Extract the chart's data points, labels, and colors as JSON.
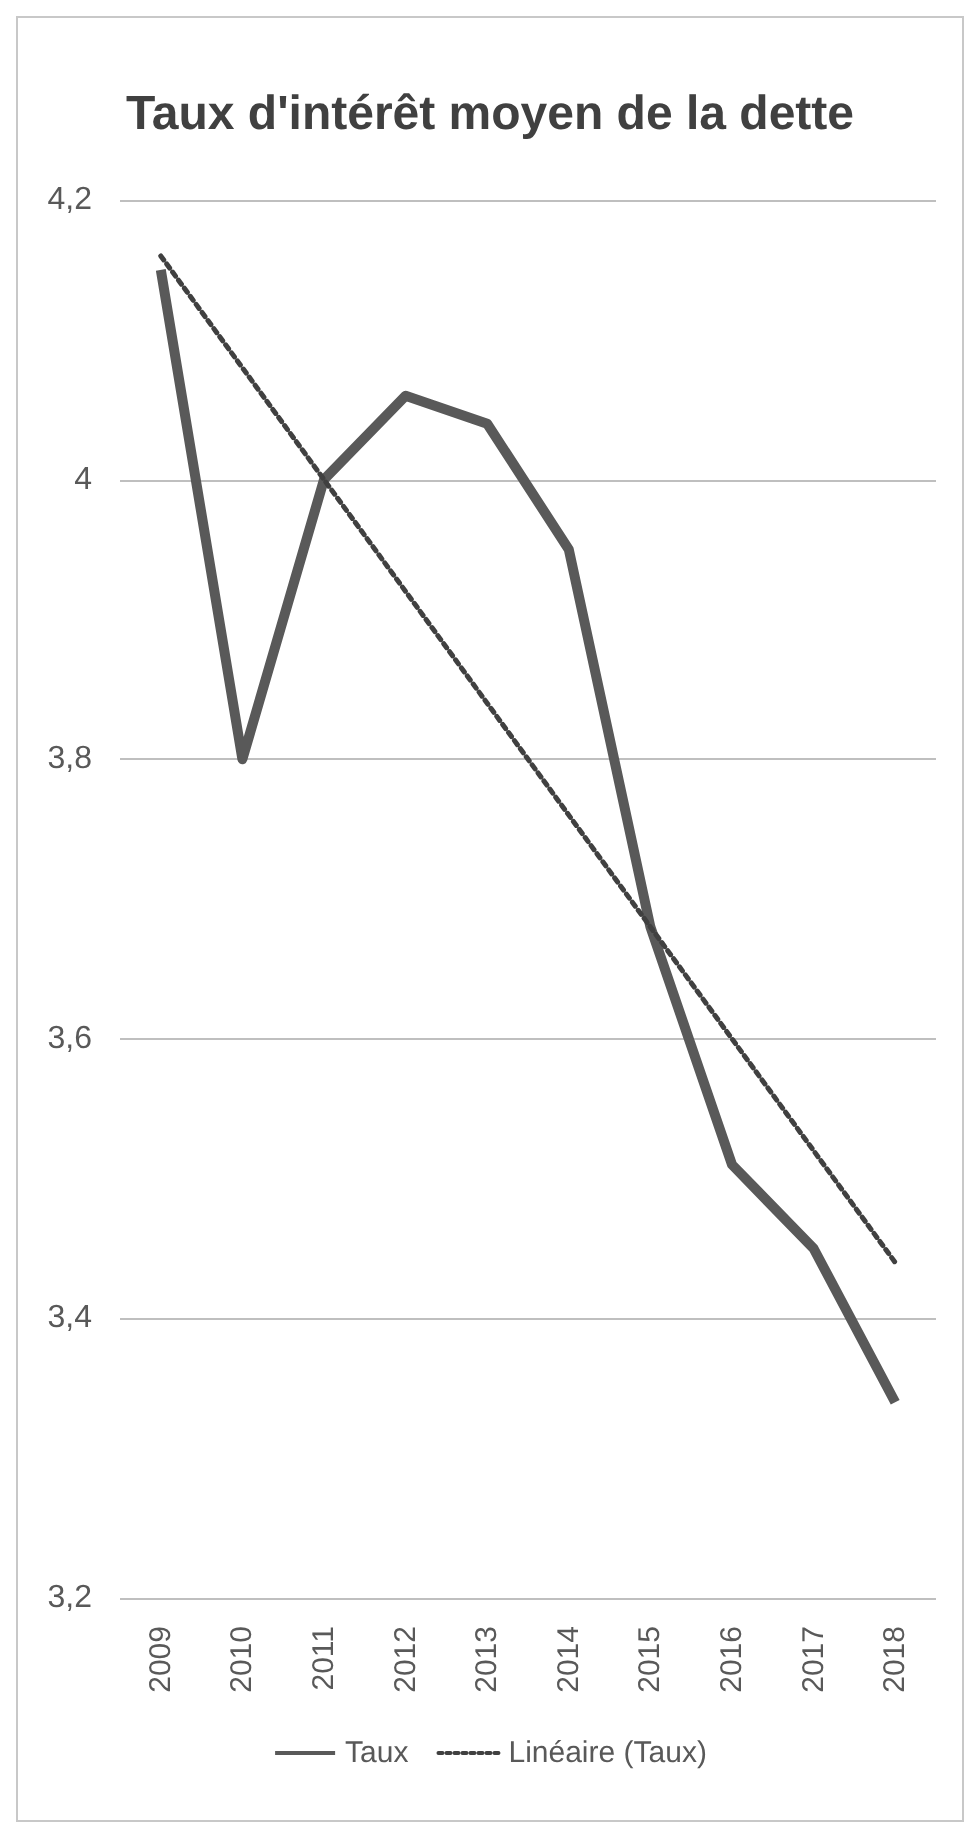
{
  "chart_data": {
    "type": "line",
    "title": "Taux d'intérêt moyen de la dette",
    "categories": [
      "2009",
      "2010",
      "2011",
      "2012",
      "2013",
      "2014",
      "2015",
      "2016",
      "2017",
      "2018"
    ],
    "series": [
      {
        "name": "Taux",
        "color": "#595959",
        "line_style": "solid",
        "values": [
          4.15,
          3.8,
          4.0,
          4.06,
          4.04,
          3.95,
          3.68,
          3.51,
          3.45,
          3.34
        ]
      },
      {
        "name": "Linéaire (Taux)",
        "color": "#404040",
        "line_style": "dotted",
        "values": [
          4.16,
          4.08,
          4.0,
          3.92,
          3.84,
          3.76,
          3.68,
          3.6,
          3.52,
          3.44
        ]
      }
    ],
    "ylim": [
      3.2,
      4.2
    ],
    "yticks": [
      {
        "value": 3.2,
        "label": "3,2"
      },
      {
        "value": 3.4,
        "label": "3,4"
      },
      {
        "value": 3.6,
        "label": "3,6"
      },
      {
        "value": 3.8,
        "label": "3,8"
      },
      {
        "value": 4,
        "label": "4"
      },
      {
        "value": 4.2,
        "label": "4,2"
      }
    ],
    "grid": "y",
    "legend": "bottom",
    "marker": "none"
  }
}
